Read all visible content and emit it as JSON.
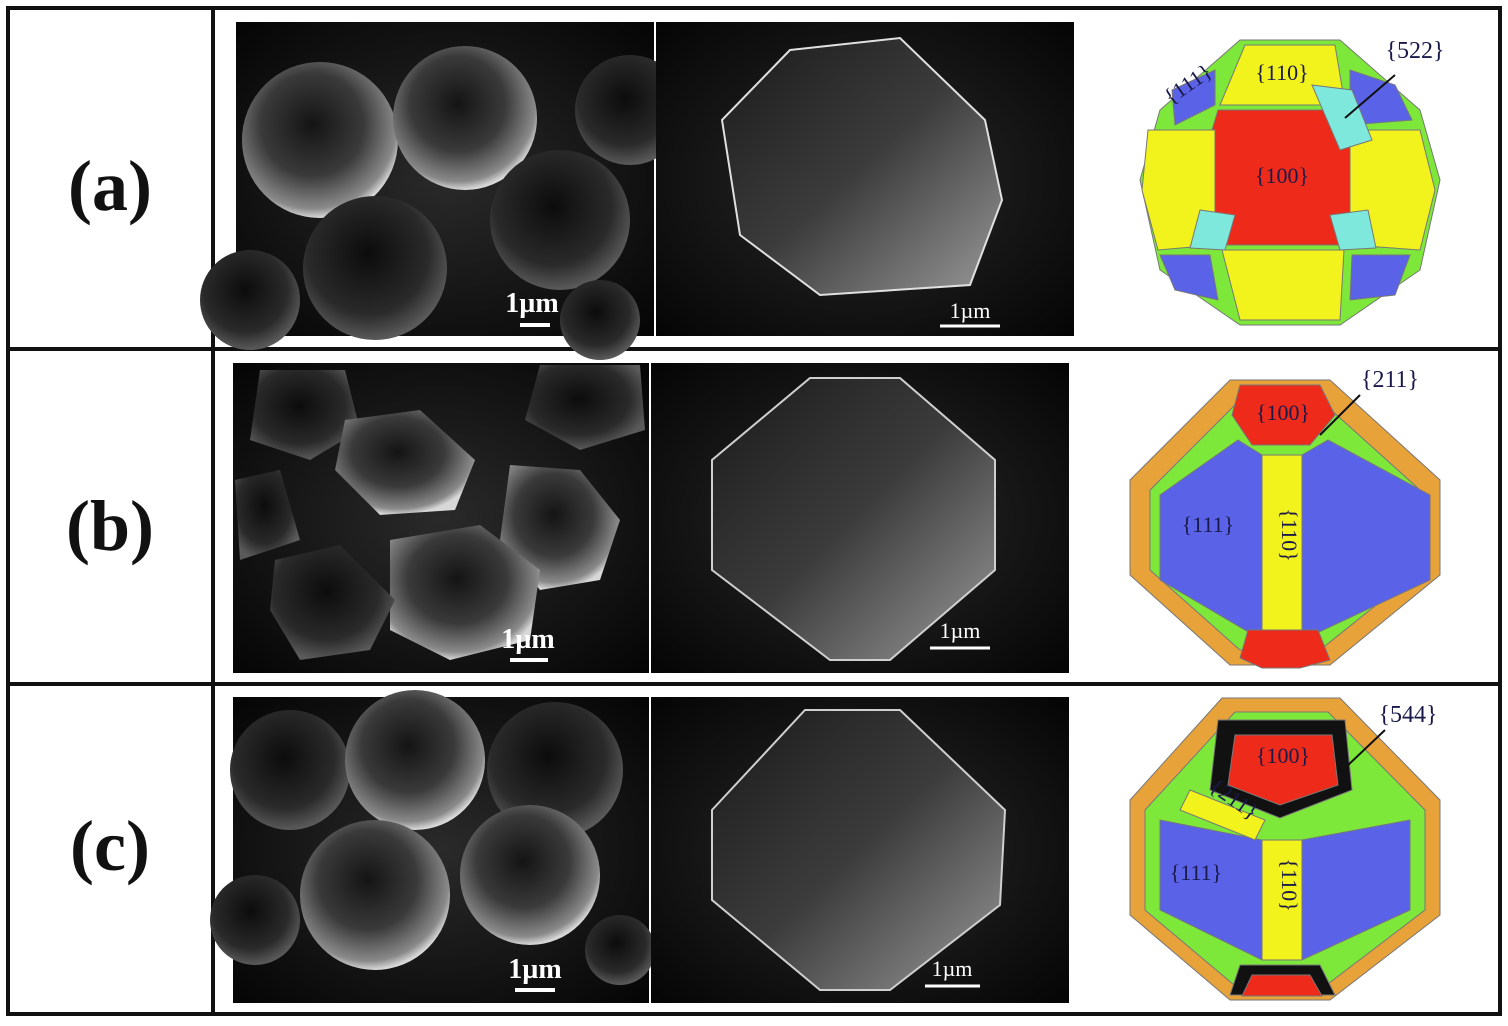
{
  "rows": [
    {
      "label": "(a)",
      "scale_left": "1µm",
      "scale_mid": "1µm",
      "facets": [
        "{522}",
        "{110}",
        "{111}",
        "{100}"
      ]
    },
    {
      "label": "(b)",
      "scale_left": "1µm",
      "scale_mid": "1µm",
      "facets": [
        "{211}",
        "{100}",
        "{111}",
        "{110}"
      ]
    },
    {
      "label": "(c)",
      "scale_left": "1µm",
      "scale_mid": "1µm",
      "facets": [
        "{544}",
        "{100}",
        "{211}",
        "{111}",
        "{110}"
      ]
    }
  ],
  "colors": {
    "red": "#ee2a1a",
    "yellow": "#f2f21c",
    "blue": "#5a63e8",
    "cyan": "#7ee8dc",
    "green": "#7ee83a",
    "orange": "#e8a23a",
    "black": "#111111"
  }
}
